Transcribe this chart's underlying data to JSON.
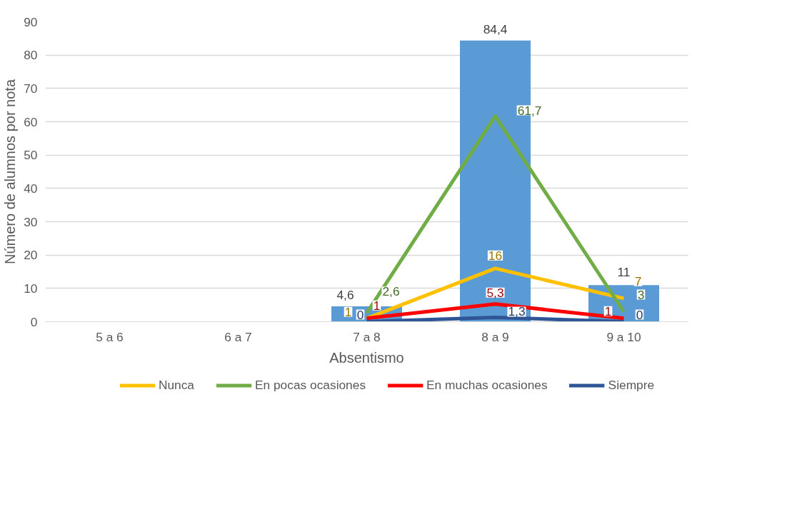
{
  "chart_data": {
    "type": "bar",
    "xlabel": "Absentismo",
    "ylabel": "Número de alumnos por nota",
    "categories": [
      "5 a 6",
      "6 a 7",
      "7 a 8",
      "8 a 9",
      "9 a 10"
    ],
    "ylim": [
      0,
      90
    ],
    "yticks": [
      0,
      10,
      20,
      30,
      40,
      50,
      60,
      70,
      80,
      90
    ],
    "grid": "y",
    "legend": "bottom",
    "line_style": "solid",
    "marker": "none",
    "series": [
      {
        "type": "bar",
        "color": "#5b9bd5",
        "values": [
          null,
          null,
          4.6,
          84.4,
          11
        ],
        "value_labels": [
          null,
          null,
          "4,6",
          "84,4",
          "11"
        ]
      },
      {
        "type": "line",
        "name": "Nunca",
        "color": "#ffc000",
        "values": [
          null,
          null,
          1,
          16,
          7
        ],
        "value_labels": [
          null,
          null,
          "1",
          "16",
          "7"
        ]
      },
      {
        "type": "line",
        "name": "En pocas ocasiones",
        "color": "#70ad47",
        "values": [
          null,
          null,
          2.6,
          61.7,
          3
        ],
        "value_labels": [
          null,
          null,
          "2,6",
          "61,7",
          "3"
        ]
      },
      {
        "type": "line",
        "name": "En muchas ocasiones",
        "color": "#ff0000",
        "values": [
          null,
          null,
          1,
          5.3,
          1
        ],
        "value_labels": [
          null,
          null,
          "1",
          "5,3",
          "1"
        ]
      },
      {
        "type": "line",
        "name": "Siempre",
        "color": "#2f5597",
        "values": [
          null,
          null,
          0,
          1.3,
          0
        ],
        "value_labels": [
          null,
          null,
          "0",
          "1,3",
          "0"
        ]
      }
    ]
  }
}
